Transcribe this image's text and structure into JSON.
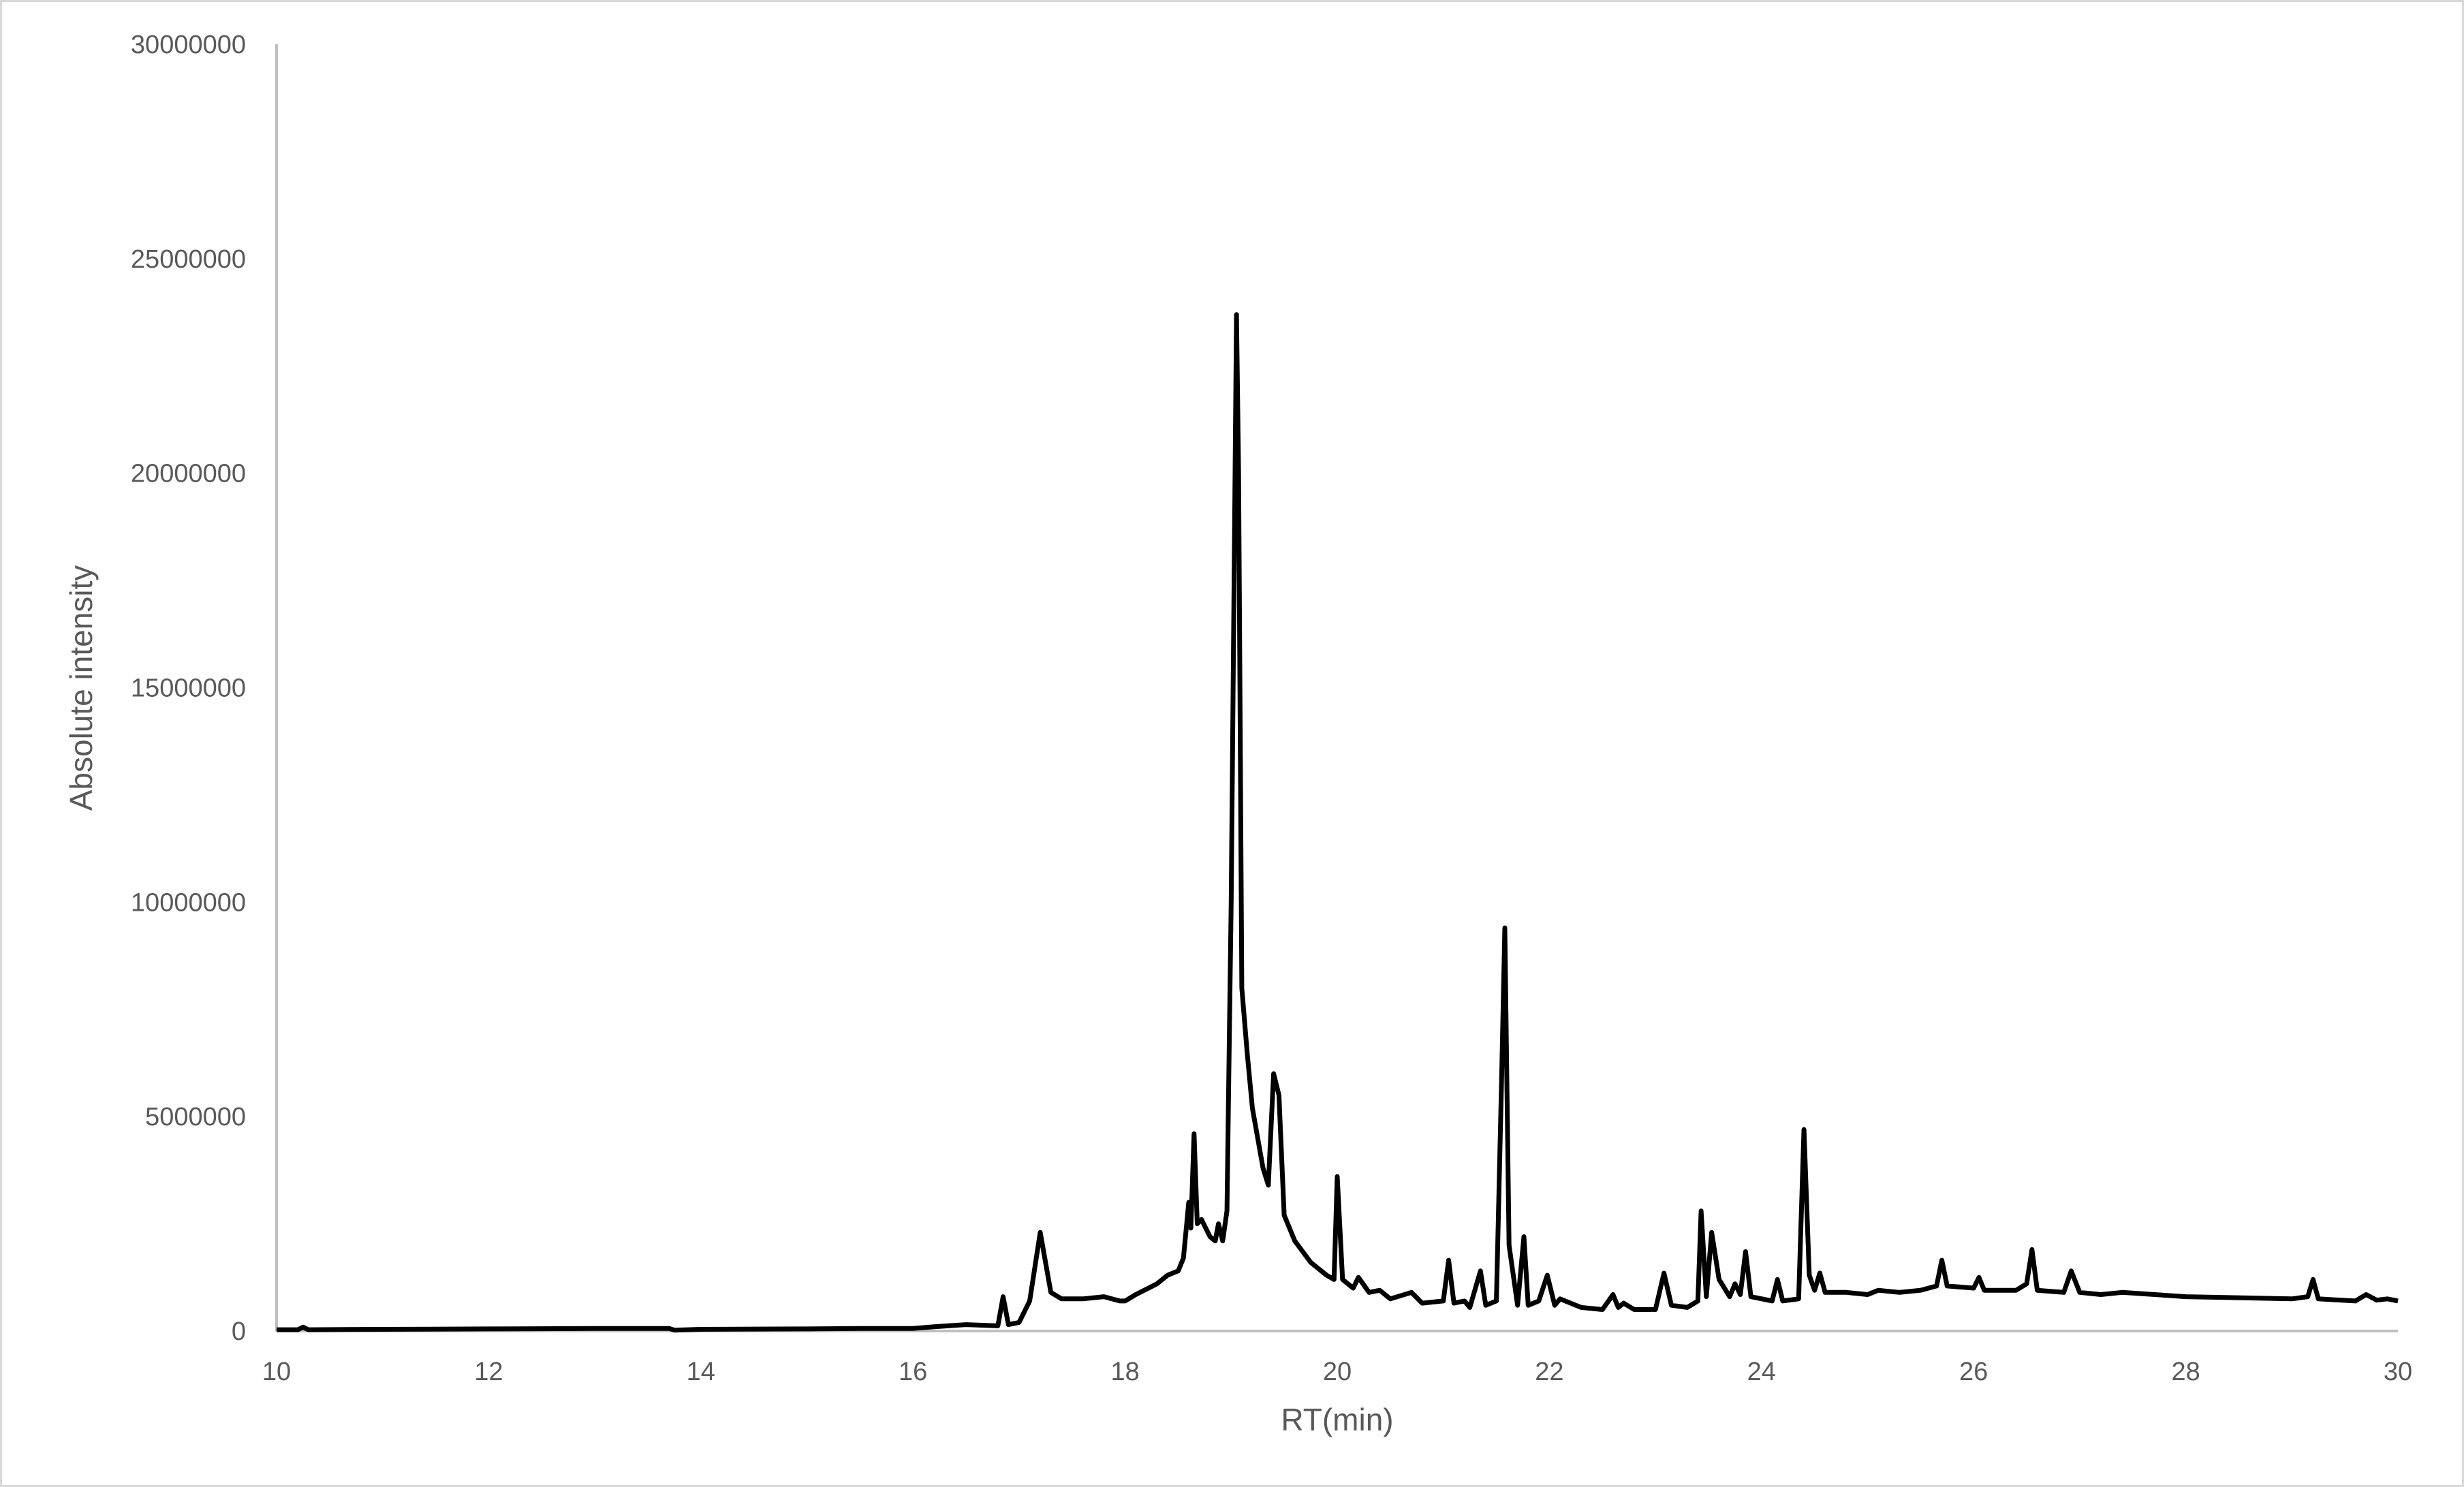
{
  "chart_data": {
    "type": "line",
    "title": "",
    "xlabel": "RT(min)",
    "ylabel": "Absolute intensity",
    "xlim": [
      10,
      30
    ],
    "ylim": [
      0,
      30000000
    ],
    "xticks": [
      10,
      12,
      14,
      16,
      18,
      20,
      22,
      24,
      26,
      28,
      30
    ],
    "yticks": [
      0,
      5000000,
      10000000,
      15000000,
      20000000,
      25000000,
      30000000
    ],
    "grid": false,
    "line_color": "#000000",
    "axis_color": "#bfbfbf",
    "series": [
      {
        "x": [
          10,
          10.2,
          10.25,
          10.3,
          11,
          12,
          13,
          13.7,
          13.75,
          14,
          15,
          15.5,
          16,
          16.2,
          16.5,
          16.8,
          16.85,
          16.9,
          17.0,
          17.1,
          17.2,
          17.3,
          17.4,
          17.6,
          17.8,
          17.95,
          18.0,
          18.1,
          18.3,
          18.4,
          18.5,
          18.55,
          18.6,
          18.62,
          18.65,
          18.68,
          18.72,
          18.8,
          18.85,
          18.88,
          18.92,
          18.96,
          19.0,
          19.05,
          19.07,
          19.1,
          19.15,
          19.2,
          19.3,
          19.35,
          19.4,
          19.45,
          19.5,
          19.6,
          19.75,
          19.9,
          19.97,
          20.0,
          20.05,
          20.15,
          20.2,
          20.3,
          20.4,
          20.5,
          20.7,
          20.8,
          21.0,
          21.05,
          21.1,
          21.2,
          21.25,
          21.35,
          21.4,
          21.5,
          21.55,
          21.58,
          21.62,
          21.7,
          21.76,
          21.8,
          21.9,
          21.98,
          22.05,
          22.1,
          22.3,
          22.5,
          22.6,
          22.65,
          22.7,
          22.8,
          23.0,
          23.08,
          23.15,
          23.3,
          23.4,
          23.43,
          23.48,
          23.53,
          23.6,
          23.7,
          23.75,
          23.8,
          23.85,
          23.9,
          24.1,
          24.15,
          24.2,
          24.35,
          24.4,
          24.45,
          24.5,
          24.55,
          24.6,
          24.8,
          25.0,
          25.1,
          25.3,
          25.5,
          25.65,
          25.7,
          25.75,
          26.0,
          26.05,
          26.1,
          26.4,
          26.5,
          26.55,
          26.6,
          26.85,
          26.92,
          27.0,
          27.2,
          27.4,
          28.0,
          29.0,
          29.15,
          29.2,
          29.25,
          29.6,
          29.7,
          29.8,
          29.9,
          30
        ],
        "y": [
          30000,
          30000,
          90000,
          30000,
          40000,
          50000,
          60000,
          60000,
          20000,
          40000,
          50000,
          60000,
          60000,
          100000,
          150000,
          120000,
          800000,
          150000,
          200000,
          700000,
          2300000,
          900000,
          750000,
          750000,
          800000,
          700000,
          700000,
          850000,
          1100000,
          1300000,
          1400000,
          1700000,
          3000000,
          2400000,
          4600000,
          2500000,
          2600000,
          2200000,
          2100000,
          2500000,
          2100000,
          2800000,
          10000000,
          23700000,
          20000000,
          8000000,
          6500000,
          5200000,
          3800000,
          3400000,
          6000000,
          5500000,
          2700000,
          2100000,
          1600000,
          1300000,
          1200000,
          3600000,
          1200000,
          1000000,
          1250000,
          900000,
          950000,
          750000,
          900000,
          650000,
          700000,
          1650000,
          650000,
          700000,
          550000,
          1400000,
          600000,
          700000,
          5900000,
          9400000,
          2000000,
          600000,
          2200000,
          600000,
          700000,
          1300000,
          600000,
          750000,
          550000,
          500000,
          850000,
          550000,
          650000,
          500000,
          500000,
          1350000,
          600000,
          550000,
          700000,
          2800000,
          800000,
          2300000,
          1200000,
          800000,
          1100000,
          850000,
          1850000,
          800000,
          700000,
          1200000,
          700000,
          750000,
          4700000,
          1300000,
          950000,
          1350000,
          900000,
          900000,
          850000,
          950000,
          900000,
          950000,
          1050000,
          1650000,
          1050000,
          1000000,
          1250000,
          950000,
          950000,
          1100000,
          1900000,
          950000,
          900000,
          1400000,
          900000,
          850000,
          900000,
          800000,
          750000,
          800000,
          1200000,
          750000,
          700000,
          850000,
          720000,
          750000,
          700000
        ]
      }
    ]
  }
}
